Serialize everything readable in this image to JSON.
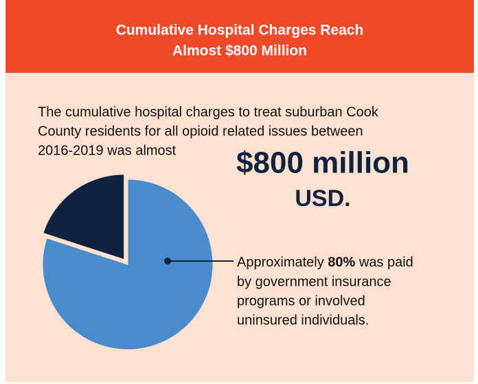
{
  "chart_data": {
    "type": "pie",
    "title_lines": [
      "Cumulative Hospital Charges Reach",
      "Almost $800 Million"
    ],
    "intro_lines": [
      "The cumulative hospital charges to treat suburban Cook",
      "County residents for all opioid related issues between",
      "2016-2019 was almost"
    ],
    "highlight": "$800 million",
    "highlight_unit": "USD.",
    "annotation": {
      "lead": "Approximately ",
      "bold": "80%",
      "rest": " was paid",
      "lines": [
        "by government insurance",
        "programs or involved",
        "uninsured individuals."
      ]
    },
    "values": [
      80,
      20
    ],
    "colors": [
      "#4a8bcb",
      "#0f2240"
    ]
  }
}
